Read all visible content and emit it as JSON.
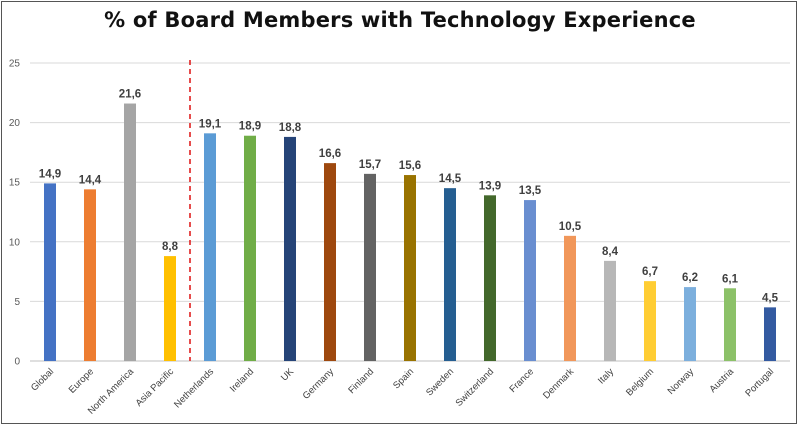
{
  "chart_data": {
    "type": "bar",
    "title": "% of Board Members with Technology Experience",
    "xlabel": "",
    "ylabel": "",
    "ylim": [
      0,
      25
    ],
    "yticks": [
      0,
      5,
      10,
      15,
      20,
      25
    ],
    "grid": true,
    "legend": "none",
    "divider_after": "Asia Pacific",
    "categories": [
      "Global",
      "Europe",
      "North America",
      "Asia Pacific",
      "Netherlands",
      "Ireland",
      "UK",
      "Germany",
      "Finland",
      "Spain",
      "Sweden",
      "Switzerland",
      "France",
      "Denmark",
      "Italy",
      "Belgium",
      "Norway",
      "Austria",
      "Portugal"
    ],
    "values": [
      14.9,
      14.4,
      21.6,
      8.8,
      19.1,
      18.9,
      18.8,
      16.6,
      15.7,
      15.6,
      14.5,
      13.9,
      13.5,
      10.5,
      8.4,
      6.7,
      6.2,
      6.1,
      4.5
    ],
    "value_labels": [
      "14,9",
      "14,4",
      "21,6",
      "8,8",
      "19,1",
      "18,9",
      "18,8",
      "16,6",
      "15,7",
      "15,6",
      "14,5",
      "13,9",
      "13,5",
      "10,5",
      "8,4",
      "6,7",
      "6,2",
      "6,1",
      "4,5"
    ],
    "colors": [
      "#4472C4",
      "#ED7D31",
      "#A5A5A5",
      "#FFC000",
      "#5B9BD5",
      "#70AD47",
      "#264478",
      "#9E480E",
      "#636363",
      "#997300",
      "#255E91",
      "#43682B",
      "#698ED0",
      "#F1975A",
      "#B7B7B7",
      "#FFCD33",
      "#7CAFDD",
      "#8CC168",
      "#335AA1"
    ]
  }
}
